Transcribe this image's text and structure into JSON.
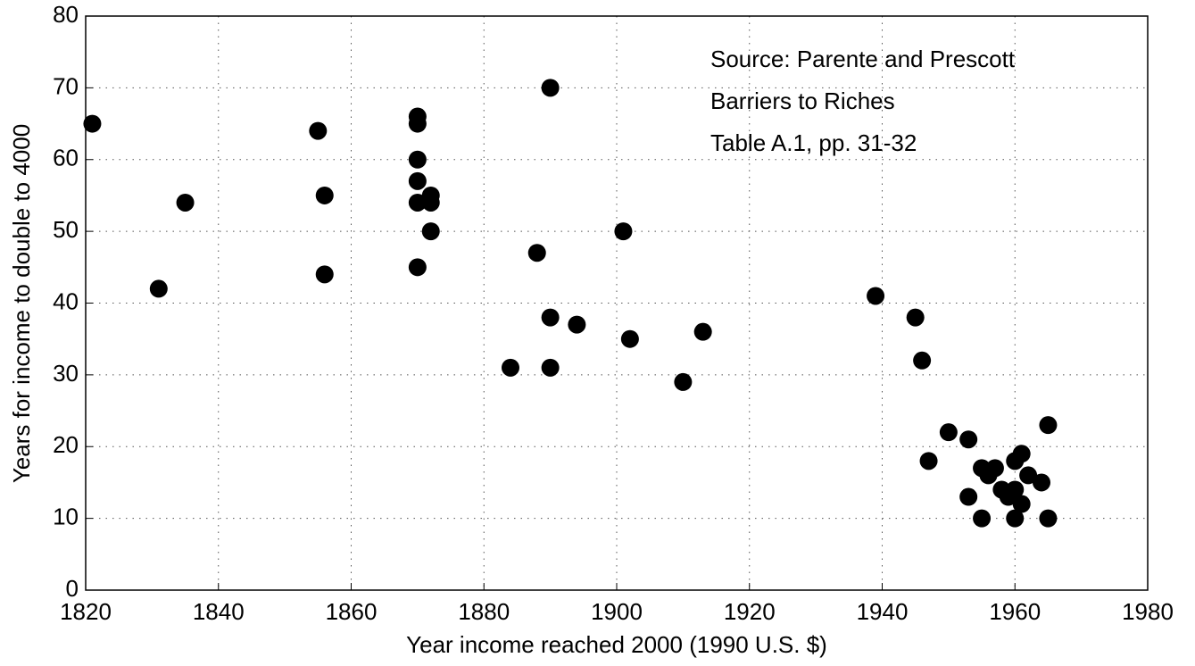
{
  "chart_data": {
    "type": "scatter",
    "x_label": "Year income reached 2000 (1990 U.S. $)",
    "y_label": "Years for income to double to 4000",
    "annotations": [
      "Source: Parente and Prescott",
      "Barriers to Riches",
      "Table A.1, pp. 31-32"
    ],
    "color": "#000000",
    "grid": true,
    "xlim": [
      1820,
      1980
    ],
    "xticks": [
      1820,
      1840,
      1860,
      1880,
      1900,
      1920,
      1940,
      1960,
      1980
    ],
    "ylim": [
      0,
      80
    ],
    "yticks": [
      0,
      10,
      20,
      30,
      40,
      50,
      60,
      70,
      80
    ],
    "x": [
      1821,
      1831,
      1835,
      1855,
      1856,
      1856,
      1870,
      1870,
      1870,
      1870,
      1870,
      1870,
      1872,
      1872,
      1872,
      1884,
      1888,
      1890,
      1890,
      1890,
      1894,
      1901,
      1902,
      1910,
      1913,
      1939,
      1945,
      1946,
      1947,
      1950,
      1953,
      1953,
      1955,
      1955,
      1956,
      1957,
      1958,
      1959,
      1960,
      1960,
      1960,
      1961,
      1961,
      1962,
      1964,
      1965,
      1965
    ],
    "values": [
      65,
      42,
      54,
      64,
      55,
      44,
      66,
      65,
      60,
      57,
      54,
      45,
      55,
      54,
      50,
      31,
      47,
      70,
      38,
      31,
      37,
      50,
      35,
      29,
      36,
      41,
      38,
      32,
      18,
      22,
      21,
      13,
      17,
      10,
      16,
      17,
      14,
      13,
      14,
      18,
      10,
      19,
      12,
      16,
      15,
      23,
      10
    ]
  }
}
